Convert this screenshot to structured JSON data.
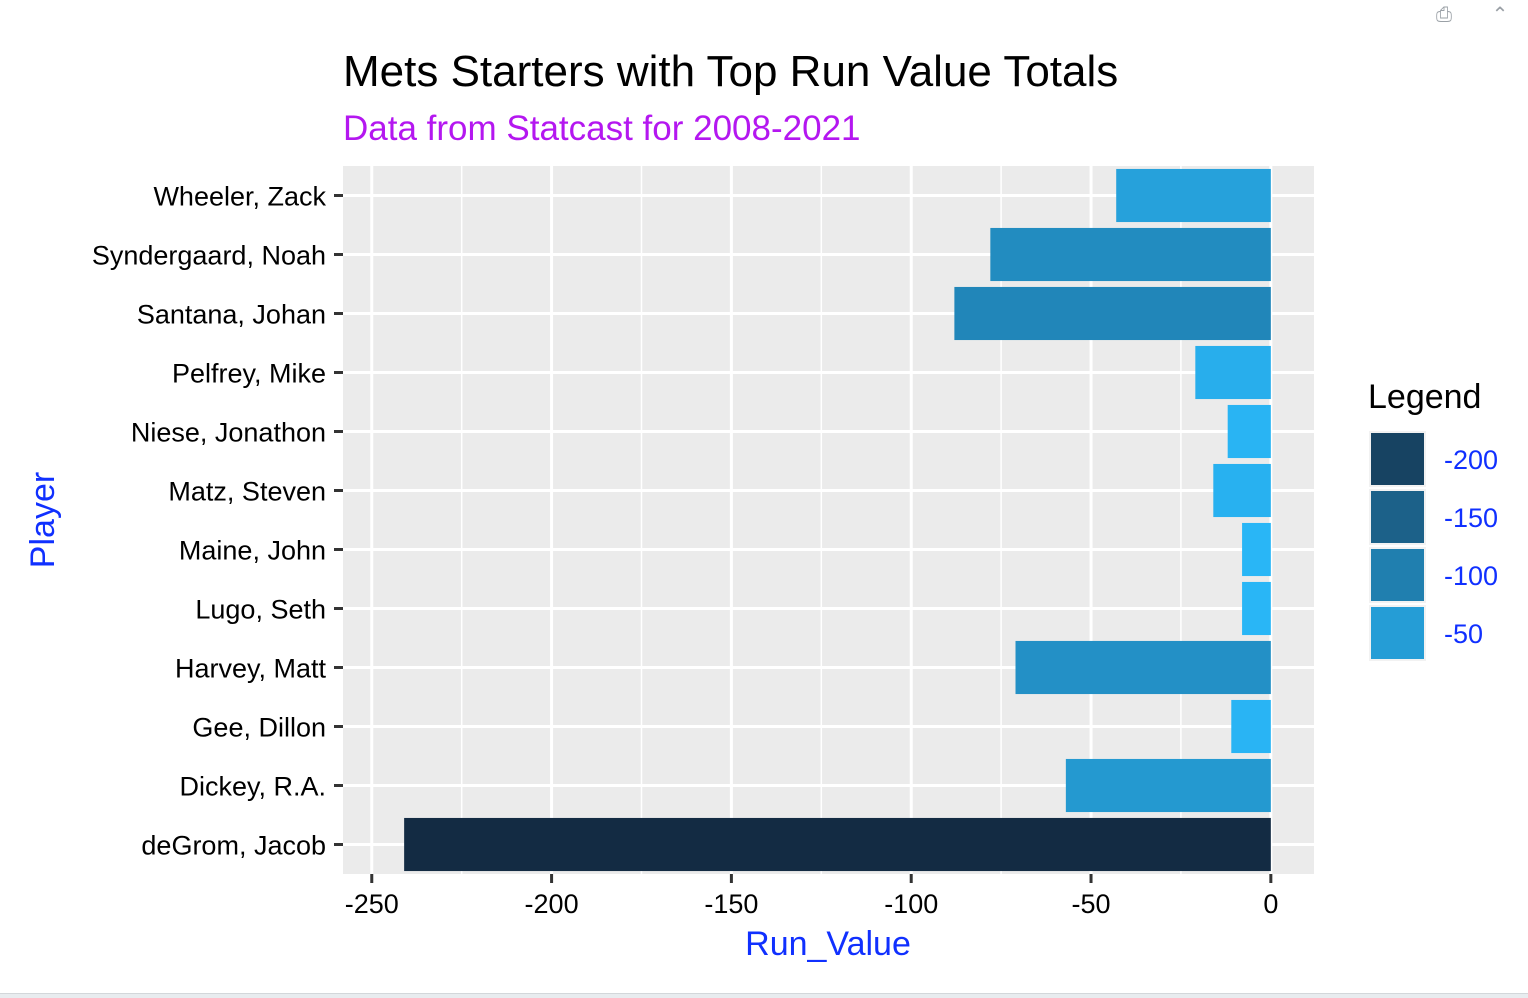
{
  "window": {
    "icons": [
      "publish-icon",
      "collapse-icon",
      "close-icon"
    ]
  },
  "colors": {
    "panel": "#EBEBEB",
    "grid": "#FFFFFF",
    "title": "#000000",
    "subtitle": "#B417F0",
    "axis_title": "#1030FF",
    "legend_labels": "#1030FF",
    "scale_low": "#132B43",
    "scale_high": "#29B6F6"
  },
  "chart_data": {
    "type": "bar",
    "orientation": "horizontal",
    "title": "Mets Starters with Top Run Value Totals",
    "subtitle": "Data from Statcast for 2008-2021",
    "xlabel": "Run_Value",
    "ylabel": "Player",
    "xlim": [
      -258,
      12
    ],
    "xticks": [
      -250,
      -200,
      -150,
      -100,
      -50,
      0
    ],
    "xtick_labels": [
      "-250",
      "-200",
      "-150",
      "-100",
      "-50",
      "0"
    ],
    "grid": true,
    "categories": [
      "Wheeler, Zack",
      "Syndergaard, Noah",
      "Santana, Johan",
      "Pelfrey, Mike",
      "Niese, Jonathon",
      "Matz, Steven",
      "Maine, John",
      "Lugo, Seth",
      "Harvey, Matt",
      "Gee, Dillon",
      "Dickey, R.A.",
      "deGrom, Jacob"
    ],
    "values": [
      -43,
      -78,
      -88,
      -21,
      -12,
      -16,
      -8,
      -8,
      -71,
      -11,
      -57,
      -241
    ],
    "legend": {
      "title": "Legend",
      "placement": "right",
      "labels": [
        "-200",
        "-150",
        "-100",
        "-50"
      ],
      "values": [
        -200,
        -150,
        -100,
        -50
      ]
    }
  }
}
